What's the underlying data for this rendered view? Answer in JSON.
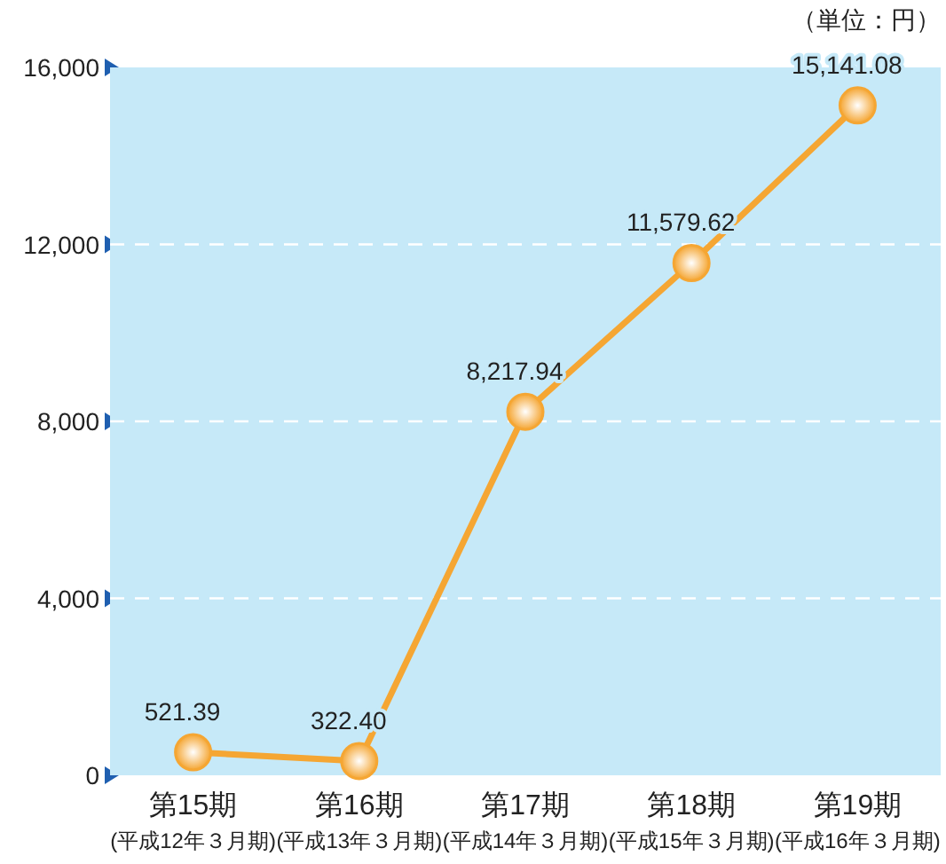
{
  "chart_data": {
    "type": "line",
    "ylabel": "（単位：円）",
    "categories": [
      "第15期\n(平成12年３月期)",
      "第16期\n(平成13年３月期)",
      "第17期\n(平成14年３月期)",
      "第18期\n(平成15年３月期)",
      "第19期\n(平成16年３月期)"
    ],
    "series": [
      {
        "color": "#f5a633",
        "values": [
          521.39,
          322.4,
          8217.94,
          11579.62,
          15141.08
        ],
        "value_labels": [
          "521.39",
          "322.40",
          "8,217.94",
          "11,579.62",
          "15,141.08"
        ]
      }
    ],
    "ylim": [
      0,
      16000
    ],
    "yticks": [
      0,
      {
        "value": 4000,
        "label": "4,000"
      },
      {
        "value": 8000,
        "label": "8,000"
      },
      {
        "value": 12000,
        "label": "12,000"
      },
      {
        "value": 16000,
        "label": "16,000"
      }
    ],
    "grid": "y",
    "marker": "circle",
    "line_style": "solid"
  }
}
